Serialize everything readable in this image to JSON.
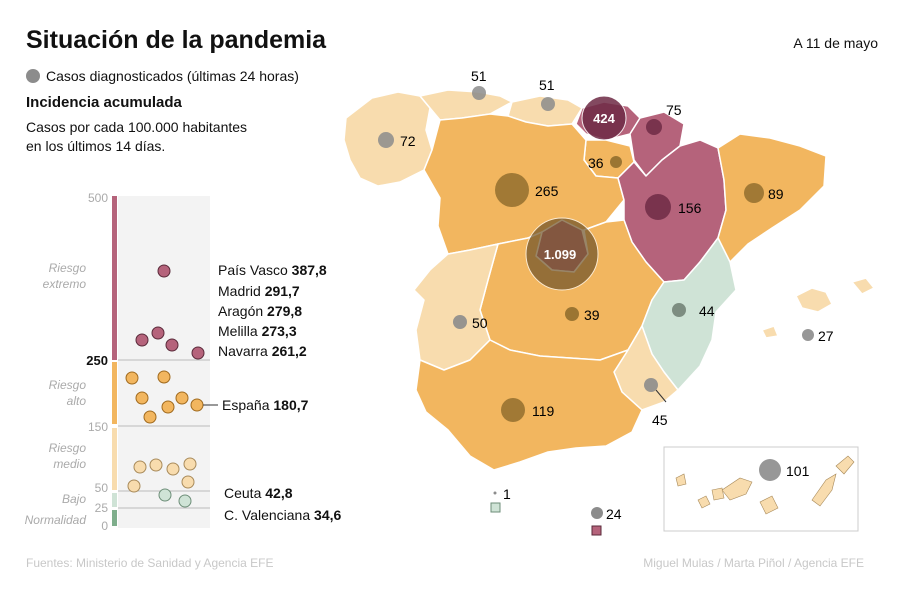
{
  "header": {
    "title": "Situación de la pandemia",
    "date": "A 11 de mayo"
  },
  "legend": {
    "cases_label": "Casos diagnosticados (últimas 24 horas)",
    "incidence_title": "Incidencia acumulada",
    "incidence_subtitle_line1": "Casos por cada 100.000 habitantes",
    "incidence_subtitle_line2": "en los últimos 14 días."
  },
  "scale": {
    "ticks": [
      "500",
      "250",
      "150",
      "50",
      "25",
      "0"
    ],
    "bands": [
      "Riesgo extremo",
      "Riesgo alto",
      "Riesgo medio",
      "Bajo",
      "Normalidad"
    ],
    "band_colors": {
      "extremo": "#b5637b",
      "alto": "#f2b65f",
      "medio": "#f8dcae",
      "bajo": "#cfe3d6",
      "normalidad": "#7fae8c"
    }
  },
  "chart_data": {
    "type": "scatter",
    "ylim": [
      0,
      500
    ],
    "highlights": [
      {
        "name": "País Vasco",
        "value": "387,8"
      },
      {
        "name": "Madrid",
        "value": "291,7"
      },
      {
        "name": "Aragón",
        "value": "279,8"
      },
      {
        "name": "Melilla",
        "value": "273,3"
      },
      {
        "name": "Navarra",
        "value": "261,2"
      },
      {
        "name": "España",
        "value": "180,7"
      },
      {
        "name": "Ceuta",
        "value": "42,8"
      },
      {
        "name": "C. Valenciana",
        "value": "34,6"
      }
    ]
  },
  "map": {
    "regions": [
      {
        "name": "Galicia",
        "cases": "72",
        "color": "#f8dcae"
      },
      {
        "name": "Asturias",
        "cases": "51",
        "color": "#f8dcae"
      },
      {
        "name": "Cantabria",
        "cases": "51",
        "color": "#f8dcae"
      },
      {
        "name": "País Vasco",
        "cases": "424",
        "color": "#b5637b"
      },
      {
        "name": "Navarra",
        "cases": "75",
        "color": "#b5637b"
      },
      {
        "name": "La Rioja",
        "cases": "36",
        "color": "#f2b65f"
      },
      {
        "name": "Castilla y León",
        "cases": "265",
        "color": "#f2b65f"
      },
      {
        "name": "Aragón",
        "cases": "156",
        "color": "#b5637b"
      },
      {
        "name": "Cataluña",
        "cases": "89",
        "color": "#f2b65f"
      },
      {
        "name": "Madrid",
        "cases": "1.099",
        "color": "#b5637b"
      },
      {
        "name": "Castilla-La Mancha",
        "cases": "39",
        "color": "#f2b65f"
      },
      {
        "name": "C. Valenciana",
        "cases": "44",
        "color": "#cfe3d6"
      },
      {
        "name": "Baleares",
        "cases": "27",
        "color": "#f8dcae"
      },
      {
        "name": "Extremadura",
        "cases": "50",
        "color": "#f8dcae"
      },
      {
        "name": "Murcia",
        "cases": "45",
        "color": "#f8dcae"
      },
      {
        "name": "Andalucía",
        "cases": "119",
        "color": "#f2b65f"
      },
      {
        "name": "Ceuta",
        "cases": "1",
        "color": "#cfe3d6"
      },
      {
        "name": "Melilla",
        "cases": "24",
        "color": "#b5637b"
      },
      {
        "name": "Canarias",
        "cases": "101",
        "color": "#f8dcae"
      }
    ]
  },
  "footer": {
    "sources": "Fuentes: Ministerio de Sanidad y Agencia EFE",
    "credits": "Miguel Mulas / Marta Piñol / Agencia EFE"
  }
}
